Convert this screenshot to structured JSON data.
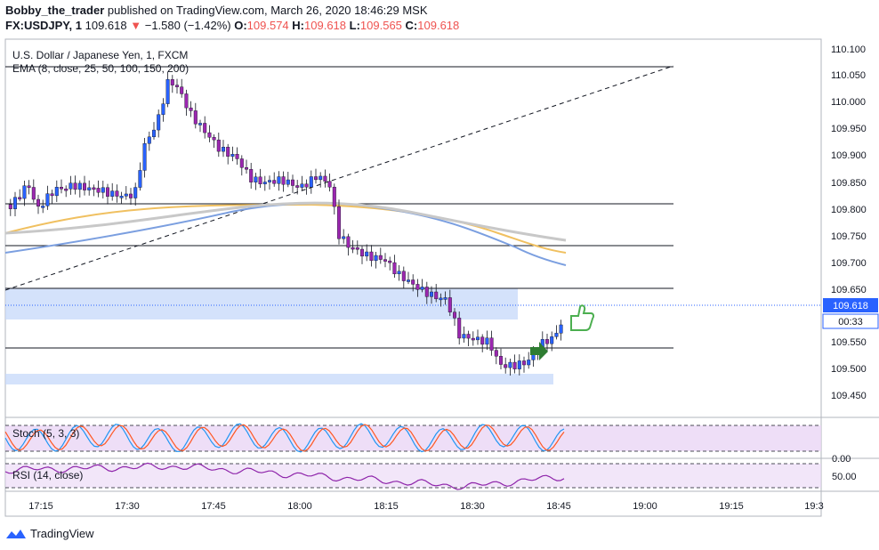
{
  "header": {
    "author": "Bobby_the_trader",
    "published_text": "published on TradingView.com, March 26, 2020 18:46:29 MSK",
    "symbol": "FX:USDJPY, 1",
    "last": "109.618",
    "change_arrow": "▼",
    "change": "−1.580 (−1.42%)",
    "o_label": "O:",
    "o_value": "109.574",
    "h_label": "H:",
    "h_value": "109.618",
    "l_label": "L:",
    "l_value": "109.565",
    "c_label": "C:",
    "c_value": "109.618"
  },
  "chart": {
    "title": "U.S. Dollar / Japanese Yen, 1, FXCM",
    "ema_label": "EMA (8, close, 25, 50, 100, 150, 200)",
    "price_axis": [
      "110.100",
      "110.050",
      "110.000",
      "109.950",
      "109.900",
      "109.850",
      "109.800",
      "109.750",
      "109.700",
      "109.650",
      "109.550",
      "109.500",
      "109.450"
    ],
    "last_price_label": "109.618",
    "countdown_label": "00:33",
    "time_axis": [
      "17:15",
      "17:30",
      "17:45",
      "18:00",
      "18:15",
      "18:30",
      "18:45",
      "19:00",
      "19:15",
      "19:3"
    ],
    "stoch_label": "Stoch (5, 3, 3)",
    "stoch_axis_label": "0.00",
    "rsi_label": "RSI (14, close)",
    "rsi_axis_label": "50.00",
    "colors": {
      "up": "#2962ff",
      "down": "#9c27b0",
      "ema_blue": "#7b9fe0",
      "ema_orange": "#f0c060",
      "ema_gray": "#c8c8c8",
      "zone": "#c5d8fa",
      "stoch_fill": "#ead6f5",
      "rsi_line": "#8e24aa",
      "last_tag": "#2962ff",
      "thumb": "#4caf50",
      "arrow": "#2e7d32"
    }
  },
  "footer": {
    "brand": "TradingView"
  }
}
